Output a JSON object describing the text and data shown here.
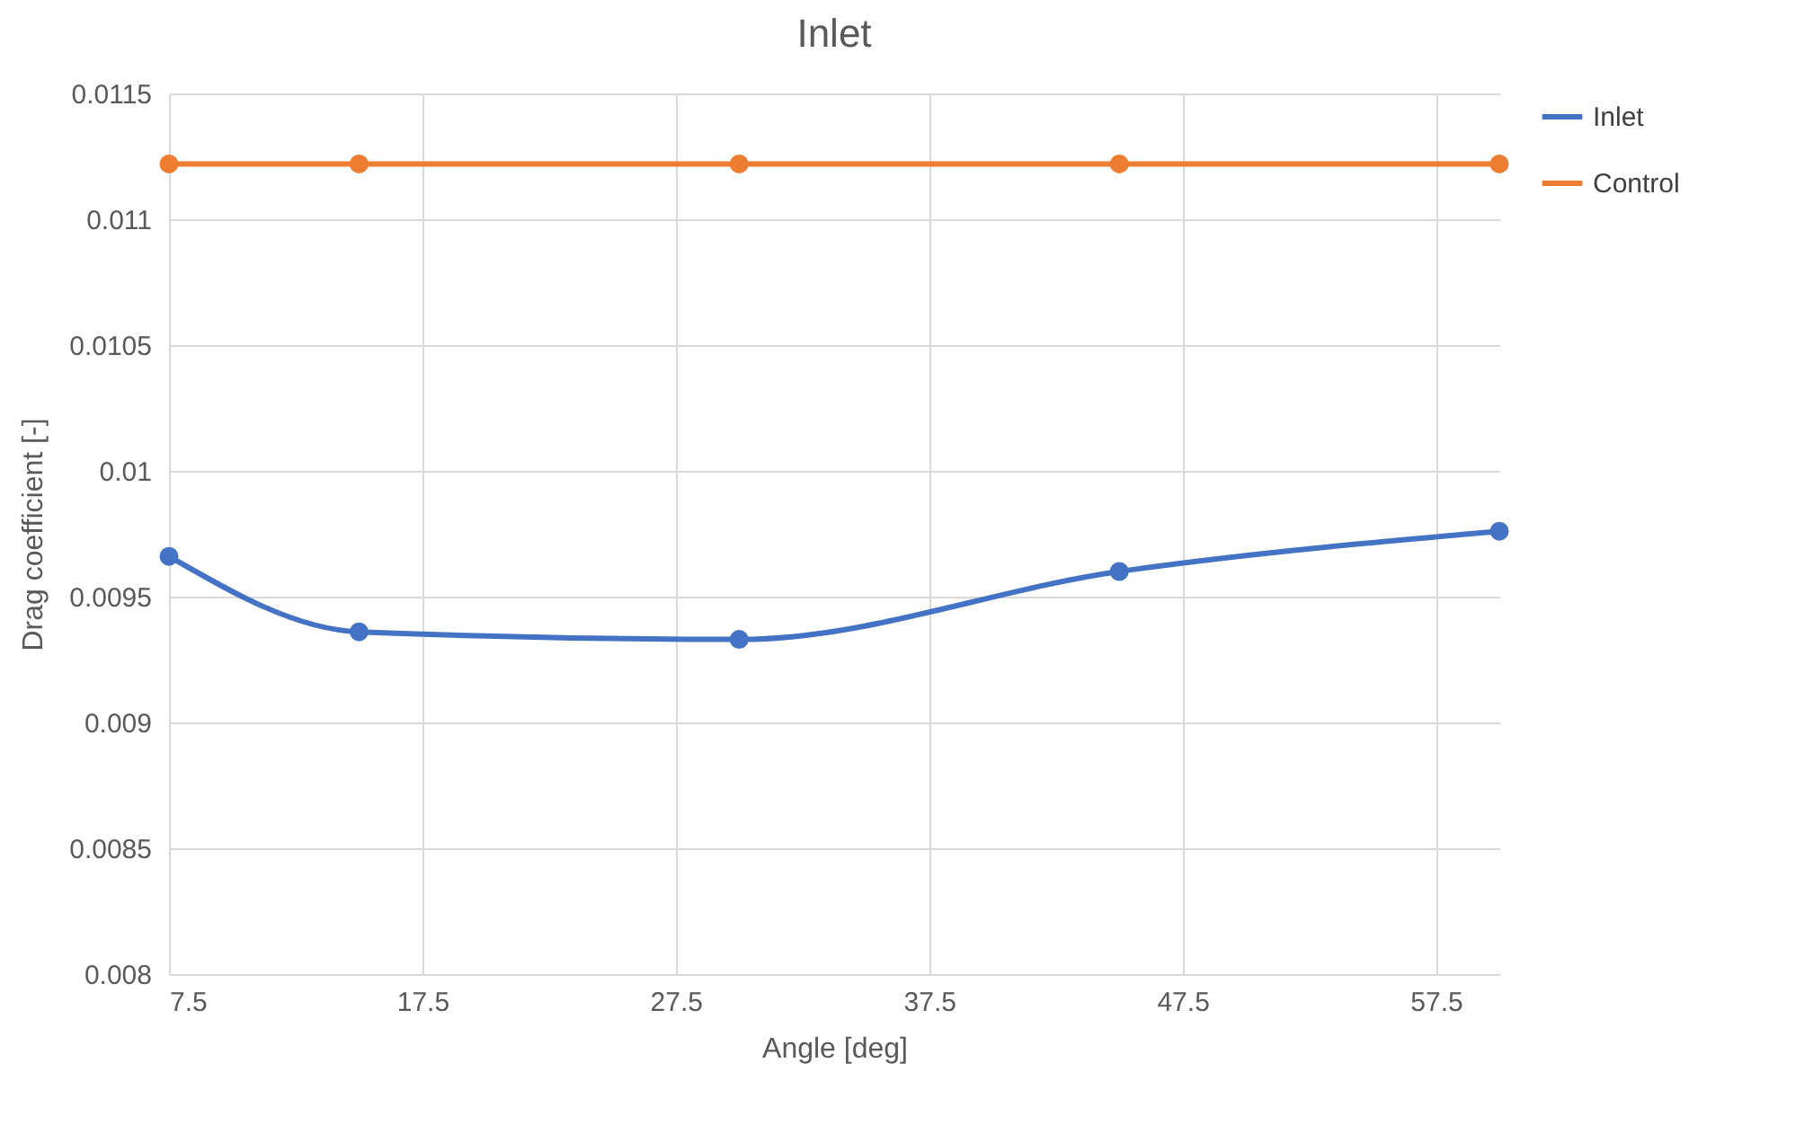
{
  "chart_data": {
    "type": "line",
    "title": "Inlet",
    "xlabel": "Angle [deg]",
    "ylabel": "Drag coefficient [-]",
    "x": [
      7.5,
      15,
      30,
      45,
      60
    ],
    "series": [
      {
        "name": "Inlet",
        "color": "#4472c4",
        "values": [
          0.00966,
          0.00936,
          0.00933,
          0.0096,
          0.00976
        ]
      },
      {
        "name": "Control",
        "color": "#ed7d31",
        "values": [
          0.01122,
          0.01122,
          0.01122,
          0.01122,
          0.01122
        ]
      }
    ],
    "xlim": [
      7.5,
      60
    ],
    "xticks": [
      7.5,
      17.5,
      27.5,
      37.5,
      47.5,
      57.5
    ],
    "ylim": [
      0.008,
      0.0115
    ],
    "yticks": [
      0.008,
      0.0085,
      0.009,
      0.0095,
      0.01,
      0.0105,
      0.011,
      0.0115
    ],
    "grid": true,
    "legend": "right",
    "marker": "circle",
    "line_style": "solid"
  }
}
